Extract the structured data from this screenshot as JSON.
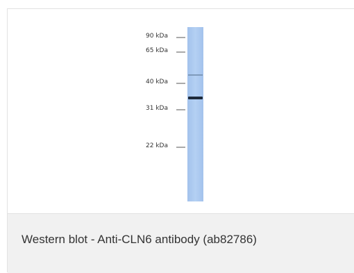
{
  "blot": {
    "markers": [
      {
        "label": "90 kDa",
        "kda": 90
      },
      {
        "label": "65 kDa",
        "kda": 65
      },
      {
        "label": "40 kDa",
        "kda": 40
      },
      {
        "label": "31 kDa",
        "kda": 31
      },
      {
        "label": "22 kDa",
        "kda": 22
      }
    ],
    "lane_color": "#a9c8ef",
    "band_color": "#1e2a3a"
  },
  "caption": {
    "text": "Western blot - Anti-CLN6 antibody (ab82786)"
  }
}
